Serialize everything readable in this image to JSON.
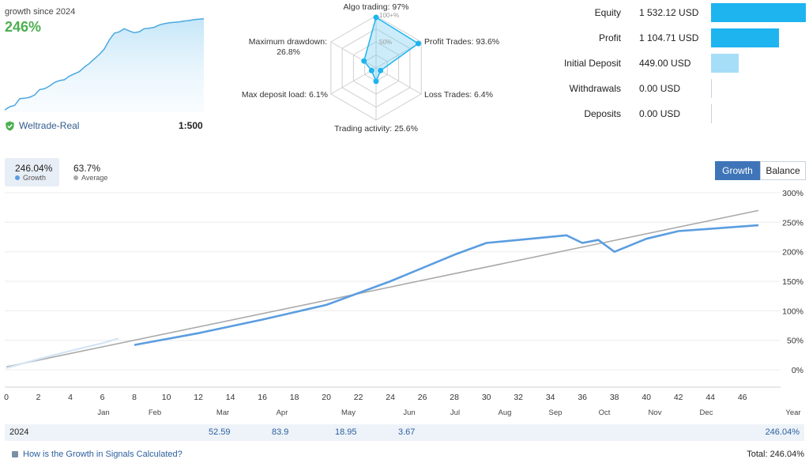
{
  "summary": {
    "growth_caption": "growth since 2024",
    "growth_value": "246%",
    "broker": "Weltrade-Real",
    "leverage": "1:500"
  },
  "radar": {
    "labels": {
      "algo": "Algo trading: 97%",
      "profit": "Profit Trades: 93.6%",
      "loss": "Loss Trades: 6.4%",
      "activity": "Trading activity: 25.6%",
      "deposit_load": "Max deposit load: 6.1%",
      "drawdown_1": "Maximum drawdown:",
      "drawdown_2": "26.8%"
    },
    "scale_100": "100+%",
    "scale_50": "50%",
    "values": {
      "algo": 97,
      "profit": 93.6,
      "loss": 6.4,
      "activity": 25.6,
      "deposit_load": 6.1,
      "drawdown": 26.8
    }
  },
  "stats": [
    {
      "label": "Equity",
      "value": "1 532.12 USD",
      "fraction": 1.0,
      "color": "#1eb4ef"
    },
    {
      "label": "Profit",
      "value": "1 104.71 USD",
      "fraction": 0.72,
      "color": "#1eb4ef"
    },
    {
      "label": "Initial Deposit",
      "value": "449.00 USD",
      "fraction": 0.29,
      "color": "#a6def8"
    },
    {
      "label": "Withdrawals",
      "value": "0.00 USD",
      "fraction": 0.0,
      "color": "#a6def8"
    },
    {
      "label": "Deposits",
      "value": "0.00 USD",
      "fraction": 0.0,
      "color": "#a6def8"
    }
  ],
  "legend": {
    "growth_value": "246.04%",
    "growth_name": "Growth",
    "average_value": "63.7%",
    "average_name": "Average"
  },
  "tabs": {
    "growth": "Growth",
    "balance": "Balance"
  },
  "chart_data": {
    "type": "line",
    "x_ticks": [
      "0",
      "2",
      "4",
      "6",
      "8",
      "10",
      "12",
      "14",
      "16",
      "18",
      "20",
      "22",
      "24",
      "26",
      "28",
      "30",
      "32",
      "34",
      "36",
      "38",
      "40",
      "42",
      "44",
      "46"
    ],
    "months": [
      "Jan",
      "Feb",
      "Mar",
      "Apr",
      "May",
      "Jun",
      "Jul",
      "Aug",
      "Sep",
      "Oct",
      "Nov",
      "Dec",
      "Year"
    ],
    "y_ticks": [
      "300%",
      "250%",
      "200%",
      "150%",
      "100%",
      "50%",
      "0%"
    ],
    "ylim": [
      0,
      300
    ],
    "series": [
      {
        "name": "Growth",
        "color": "#5b9de0",
        "x": [
          0,
          2,
          4,
          6,
          7,
          8,
          12,
          16,
          20,
          24,
          28,
          30,
          32,
          35,
          36,
          37,
          38,
          40,
          42,
          47
        ],
        "y": [
          3,
          18,
          32,
          45,
          53,
          42,
          62,
          85,
          110,
          150,
          195,
          215,
          220,
          228,
          215,
          220,
          200,
          222,
          235,
          245
        ]
      },
      {
        "name": "Average",
        "color": "#aaaaaa",
        "x": [
          0,
          47
        ],
        "y": [
          5,
          270
        ]
      }
    ]
  },
  "mini_chart": {
    "x": [
      0,
      1,
      2,
      3,
      4,
      5,
      6,
      7,
      8,
      9,
      10,
      11,
      12,
      13,
      14,
      15,
      16,
      17,
      18,
      19,
      20,
      21,
      22,
      23,
      24,
      25,
      26,
      27,
      28,
      29,
      30,
      31,
      32,
      33,
      34,
      35,
      36,
      37,
      38,
      39,
      40
    ],
    "y": [
      5,
      12,
      15,
      30,
      31,
      33,
      38,
      50,
      52,
      58,
      66,
      70,
      72,
      80,
      85,
      90,
      100,
      108,
      118,
      128,
      140,
      160,
      175,
      178,
      185,
      180,
      176,
      178,
      185,
      186,
      188,
      193,
      196,
      198,
      199,
      200,
      202,
      203,
      205,
      206,
      207
    ]
  },
  "year_row": {
    "year": "2024",
    "values": [
      "52.59",
      "83.9",
      "18.95",
      "3.67"
    ],
    "total": "246.04%"
  },
  "footer": {
    "link": "How is the Growth in Signals Calculated?",
    "total": "Total: 246.04%"
  }
}
